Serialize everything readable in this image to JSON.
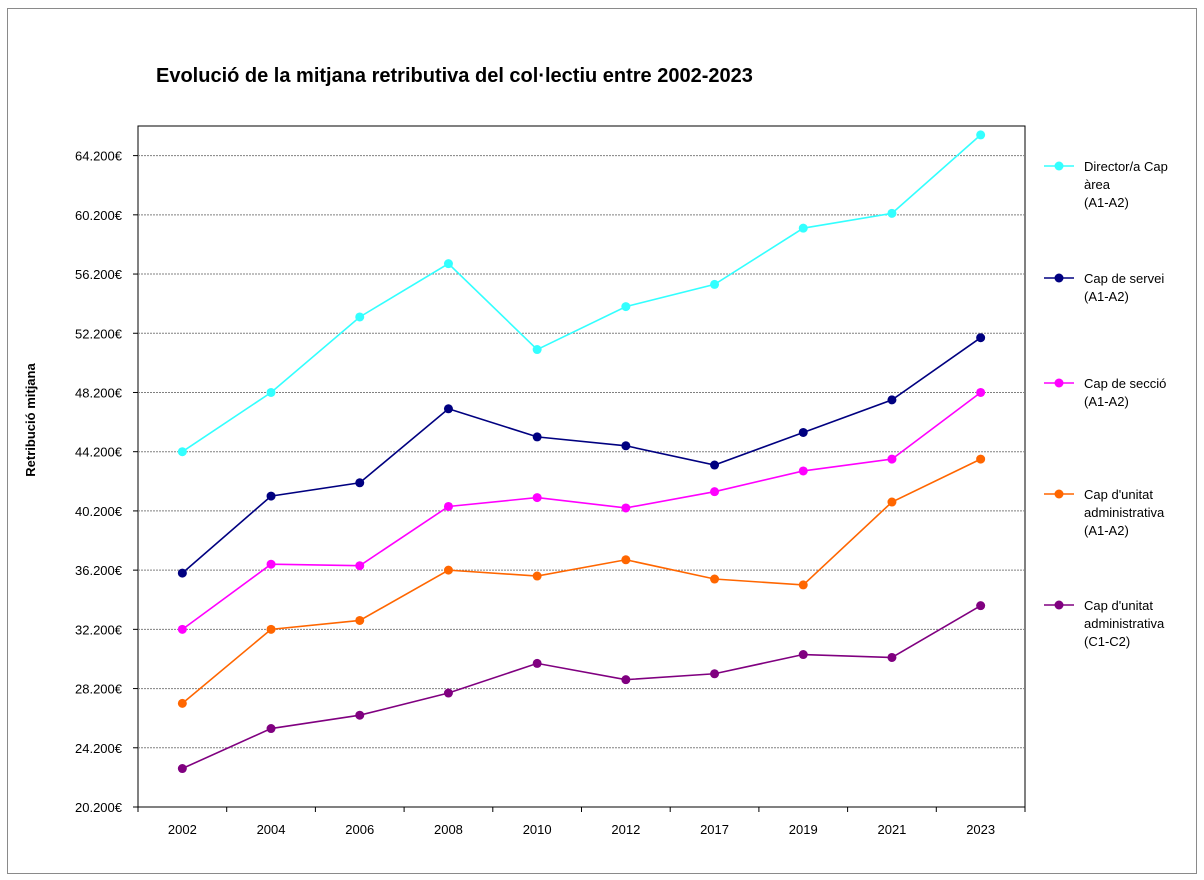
{
  "chart_data": {
    "type": "line",
    "title": "Evolució de la mitjana retributiva del col·lectiu entre 2002-2023",
    "xlabel": "",
    "ylabel": "Retribució mitjana",
    "categories": [
      "2002",
      "2004",
      "2006",
      "2008",
      "2010",
      "2012",
      "2017",
      "2019",
      "2021",
      "2023"
    ],
    "y_ticks": [
      "20.200€",
      "24.200€",
      "28.200€",
      "32.200€",
      "36.200€",
      "40.200€",
      "44.200€",
      "48.200€",
      "52.200€",
      "56.200€",
      "60.200€",
      "64.200€"
    ],
    "ylim": [
      20200,
      66200
    ],
    "grid": true,
    "legend_position": "right",
    "series": [
      {
        "name": "Director/a Cap àrea (A1-A2)",
        "legend_lines": [
          "Director/a Cap",
          "àrea",
          "(A1-A2)"
        ],
        "color": "#33ffff",
        "values": [
          44200,
          48200,
          53300,
          56900,
          51100,
          54000,
          55500,
          59300,
          60300,
          65600
        ]
      },
      {
        "name": "Cap de servei (A1-A2)",
        "legend_lines": [
          "Cap de servei",
          "(A1-A2)"
        ],
        "color": "#000080",
        "values": [
          36000,
          41200,
          42100,
          47100,
          45200,
          44600,
          43300,
          45500,
          47700,
          51900
        ]
      },
      {
        "name": "Cap de secció (A1-A2)",
        "legend_lines": [
          "Cap de secció",
          "(A1-A2)"
        ],
        "color": "#ff00ff",
        "values": [
          32200,
          36600,
          36500,
          40500,
          41100,
          40400,
          41500,
          42900,
          43700,
          48200
        ]
      },
      {
        "name": "Cap d'unitat administrativa (A1-A2)",
        "legend_lines": [
          "Cap d'unitat",
          "administrativa",
          "(A1-A2)"
        ],
        "color": "#ff6600",
        "values": [
          27200,
          32200,
          32800,
          36200,
          35800,
          36900,
          35600,
          35200,
          40800,
          43700
        ]
      },
      {
        "name": "Cap d'unitat administrativa (C1-C2)",
        "legend_lines": [
          "Cap d'unitat",
          "administrativa",
          "(C1-C2)"
        ],
        "color": "#800080",
        "values": [
          22800,
          25500,
          26400,
          27900,
          29900,
          28800,
          29200,
          30500,
          30300,
          33800
        ]
      }
    ]
  }
}
